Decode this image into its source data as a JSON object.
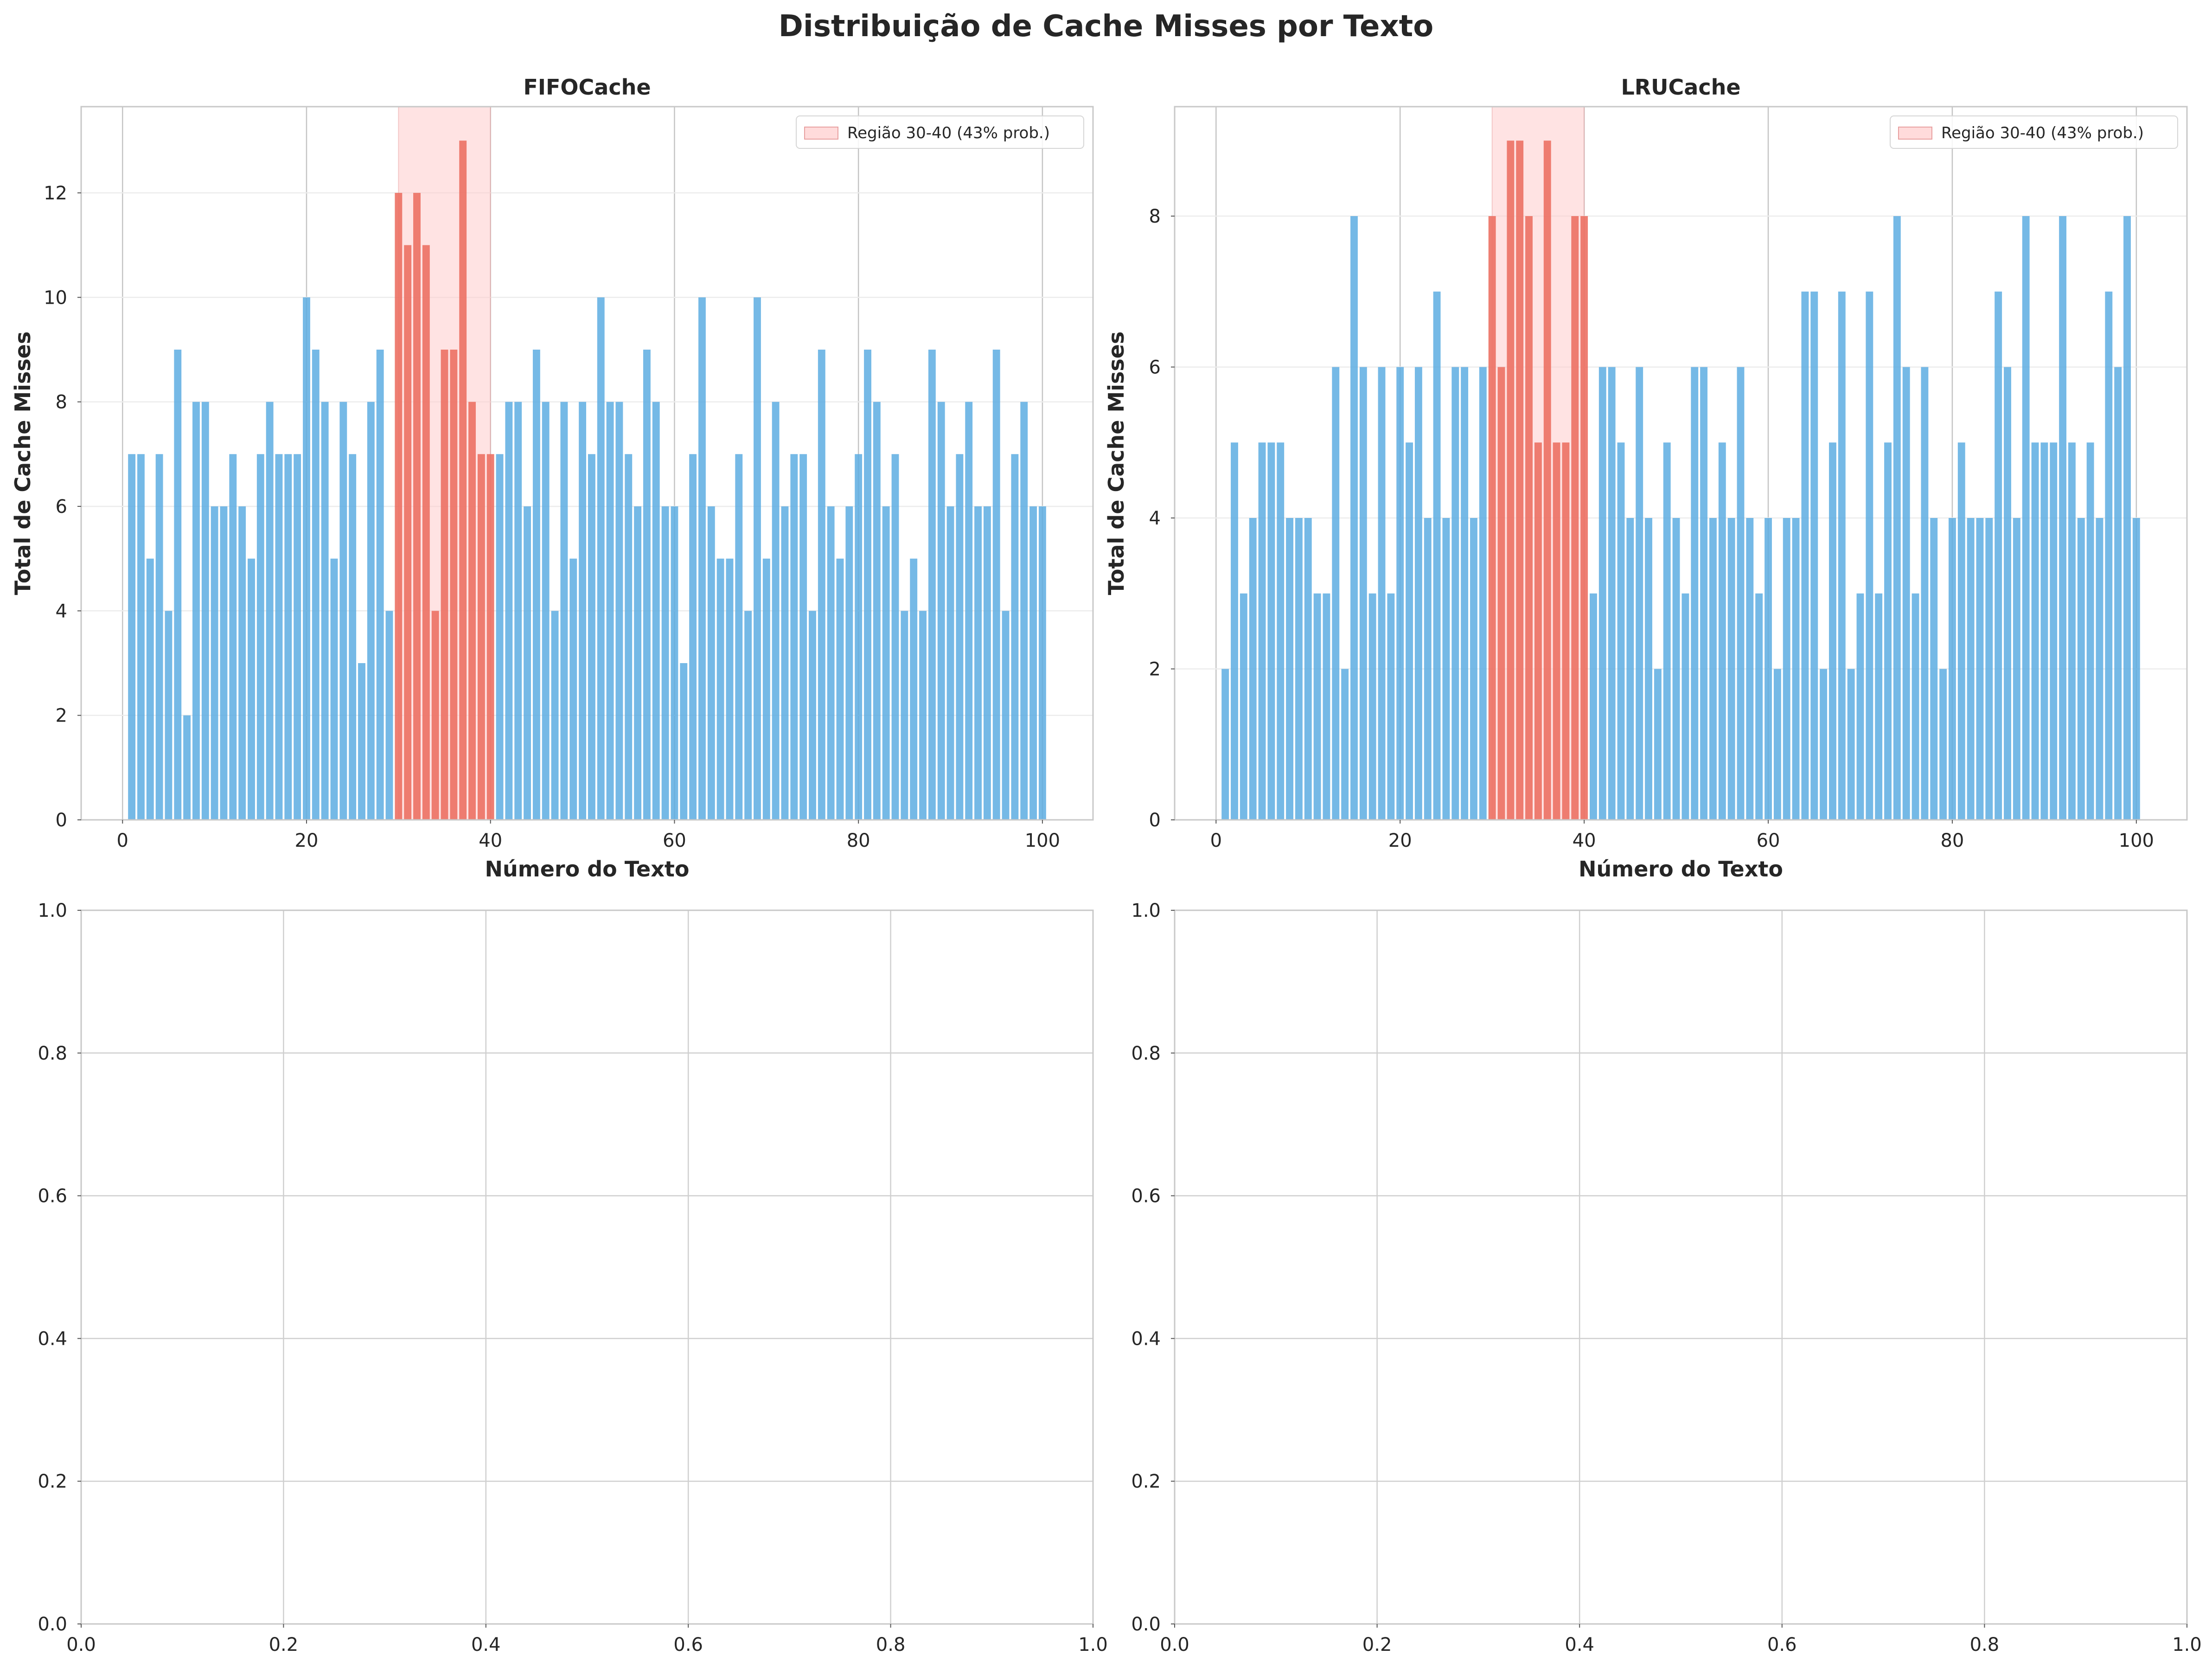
{
  "figure": {
    "title": "Distribuição de Cache Misses por Texto",
    "colors": {
      "bar_normal": "#5dade2",
      "bar_region": "#ec7063",
      "region_fill": "#ffcccc",
      "grid": "#dddddd",
      "spine": "#c8c8c8"
    }
  },
  "chart_data": [
    {
      "type": "bar",
      "title": "FIFOCache",
      "xlabel": "Número do Texto",
      "ylabel": "Total de Cache Misses",
      "xlim": [
        -4.5,
        105.5
      ],
      "ylim": [
        0,
        13.65
      ],
      "xticks": [
        0,
        20,
        40,
        60,
        80,
        100
      ],
      "yticks": [
        0,
        2,
        4,
        6,
        8,
        10,
        12
      ],
      "grid": true,
      "legend": {
        "placement": "upper right",
        "label": "Região 30-40 (43% prob.)"
      },
      "highlight_region": [
        30,
        40
      ],
      "x": [
        1,
        2,
        3,
        4,
        5,
        6,
        7,
        8,
        9,
        10,
        11,
        12,
        13,
        14,
        15,
        16,
        17,
        18,
        19,
        20,
        21,
        22,
        23,
        24,
        25,
        26,
        27,
        28,
        29,
        30,
        31,
        32,
        33,
        34,
        35,
        36,
        37,
        38,
        39,
        40,
        41,
        42,
        43,
        44,
        45,
        46,
        47,
        48,
        49,
        50,
        51,
        52,
        53,
        54,
        55,
        56,
        57,
        58,
        59,
        60,
        61,
        62,
        63,
        64,
        65,
        66,
        67,
        68,
        69,
        70,
        71,
        72,
        73,
        74,
        75,
        76,
        77,
        78,
        79,
        80,
        81,
        82,
        83,
        84,
        85,
        86,
        87,
        88,
        89,
        90,
        91,
        92,
        93,
        94,
        95,
        96,
        97,
        98,
        99,
        100
      ],
      "values": [
        7,
        7,
        5,
        7,
        4,
        9,
        2,
        8,
        8,
        6,
        6,
        7,
        6,
        5,
        7,
        8,
        7,
        7,
        7,
        10,
        9,
        8,
        5,
        8,
        7,
        3,
        8,
        9,
        4,
        12,
        11,
        12,
        11,
        4,
        9,
        9,
        13,
        8,
        7,
        7,
        7,
        8,
        8,
        6,
        9,
        8,
        4,
        8,
        5,
        8,
        7,
        10,
        8,
        8,
        7,
        6,
        9,
        8,
        6,
        6,
        3,
        7,
        10,
        6,
        5,
        5,
        7,
        4,
        10,
        5,
        8,
        6,
        7,
        7,
        4,
        9,
        6,
        5,
        6,
        7,
        9,
        8,
        6,
        7,
        4,
        5,
        4,
        9,
        8,
        6,
        7,
        8,
        6,
        6,
        9,
        4,
        7,
        8,
        6,
        6
      ]
    },
    {
      "type": "bar",
      "title": "LRUCache",
      "xlabel": "Número do Texto",
      "ylabel": "Total de Cache Misses",
      "xlim": [
        -4.5,
        105.5
      ],
      "ylim": [
        0,
        9.45
      ],
      "xticks": [
        0,
        20,
        40,
        60,
        80,
        100
      ],
      "yticks": [
        0,
        2,
        4,
        6,
        8
      ],
      "grid": true,
      "legend": {
        "placement": "upper right",
        "label": "Região 30-40 (43% prob.)"
      },
      "highlight_region": [
        30,
        40
      ],
      "x": [
        1,
        2,
        3,
        4,
        5,
        6,
        7,
        8,
        9,
        10,
        11,
        12,
        13,
        14,
        15,
        16,
        17,
        18,
        19,
        20,
        21,
        22,
        23,
        24,
        25,
        26,
        27,
        28,
        29,
        30,
        31,
        32,
        33,
        34,
        35,
        36,
        37,
        38,
        39,
        40,
        41,
        42,
        43,
        44,
        45,
        46,
        47,
        48,
        49,
        50,
        51,
        52,
        53,
        54,
        55,
        56,
        57,
        58,
        59,
        60,
        61,
        62,
        63,
        64,
        65,
        66,
        67,
        68,
        69,
        70,
        71,
        72,
        73,
        74,
        75,
        76,
        77,
        78,
        79,
        80,
        81,
        82,
        83,
        84,
        85,
        86,
        87,
        88,
        89,
        90,
        91,
        92,
        93,
        94,
        95,
        96,
        97,
        98,
        99,
        100
      ],
      "values": [
        2,
        5,
        3,
        4,
        5,
        5,
        5,
        4,
        4,
        4,
        3,
        3,
        6,
        2,
        8,
        6,
        3,
        6,
        3,
        6,
        5,
        6,
        4,
        7,
        4,
        6,
        6,
        4,
        6,
        8,
        6,
        9,
        9,
        8,
        5,
        9,
        5,
        5,
        8,
        8,
        3,
        6,
        6,
        5,
        4,
        6,
        4,
        2,
        5,
        4,
        3,
        6,
        6,
        4,
        5,
        4,
        6,
        4,
        3,
        4,
        2,
        4,
        4,
        7,
        7,
        2,
        5,
        7,
        2,
        3,
        7,
        3,
        5,
        8,
        6,
        3,
        6,
        4,
        2,
        4,
        5,
        4,
        4,
        4,
        7,
        6,
        4,
        8,
        5,
        5,
        5,
        8,
        5,
        4,
        5,
        4,
        7,
        6,
        8,
        4
      ]
    },
    {
      "type": "bar",
      "title": "",
      "xlabel": "",
      "ylabel": "",
      "xlim": [
        0,
        1
      ],
      "ylim": [
        0,
        1
      ],
      "xticks": [
        0,
        0.2,
        0.4,
        0.6,
        0.8,
        1.0
      ],
      "yticks": [
        0,
        0.2,
        0.4,
        0.6,
        0.8,
        1.0
      ],
      "grid": true,
      "x": [],
      "values": []
    },
    {
      "type": "bar",
      "title": "",
      "xlabel": "",
      "ylabel": "",
      "xlim": [
        0,
        1
      ],
      "ylim": [
        0,
        1
      ],
      "xticks": [
        0,
        0.2,
        0.4,
        0.6,
        0.8,
        1.0
      ],
      "yticks": [
        0,
        0.2,
        0.4,
        0.6,
        0.8,
        1.0
      ],
      "grid": true,
      "x": [],
      "values": []
    }
  ]
}
